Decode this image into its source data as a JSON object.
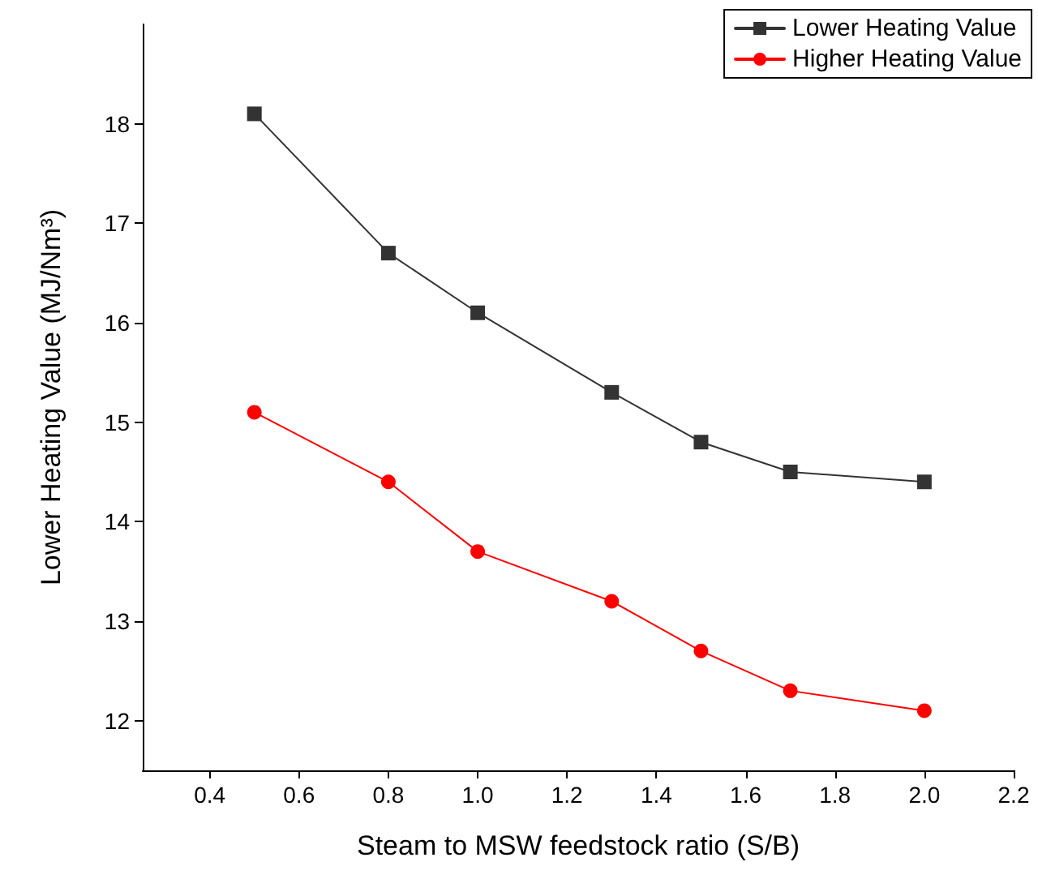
{
  "chart_data": {
    "type": "line",
    "xlabel": "Steam to MSW feedstock ratio (S/B)",
    "ylabel": "Lower Heating Value (MJ/Nm³)",
    "x": [
      0.5,
      0.8,
      1.0,
      1.3,
      1.5,
      1.7,
      2.0
    ],
    "series": [
      {
        "name": "Lower Heating Value",
        "color": "#333333",
        "marker": "square",
        "values": [
          18.1,
          16.7,
          16.1,
          15.3,
          14.8,
          14.5,
          14.4
        ]
      },
      {
        "name": "Higher Heating Value",
        "color": "#ff0000",
        "marker": "circle",
        "values": [
          15.1,
          14.4,
          13.7,
          13.2,
          12.7,
          12.3,
          12.1
        ]
      }
    ],
    "xlim": [
      0.25,
      2.2
    ],
    "xticks": [
      {
        "value": 0.4,
        "label": "0.4"
      },
      {
        "value": 0.6,
        "label": "0.6"
      },
      {
        "value": 0.8,
        "label": "0.8"
      },
      {
        "value": 1.0,
        "label": "1.0"
      },
      {
        "value": 1.2,
        "label": "1.2"
      },
      {
        "value": 1.4,
        "label": "1.4"
      },
      {
        "value": 1.6,
        "label": "1.6"
      },
      {
        "value": 1.8,
        "label": "1.8"
      },
      {
        "value": 2.0,
        "label": "2.0"
      },
      {
        "value": 2.2,
        "label": "2.2"
      }
    ],
    "ylim": [
      11.5,
      19
    ],
    "yticks": [
      12,
      13,
      14,
      15,
      16,
      17,
      18
    ],
    "grid": false,
    "legend": "top right",
    "line_style": "solid"
  }
}
